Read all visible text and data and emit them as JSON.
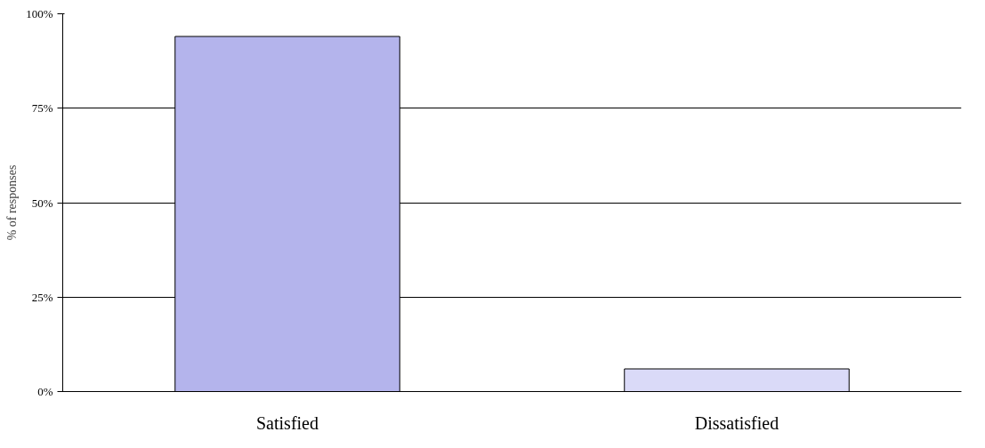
{
  "chart_data": {
    "type": "bar",
    "ylabel": "% of responses",
    "categories": [
      "Satisfied",
      "Dissatisfied"
    ],
    "values": [
      94,
      6
    ],
    "colors": [
      "#b4b4ec",
      "#dadaf8"
    ],
    "ylim": [
      0,
      100
    ],
    "yticks": [
      {
        "value": 0,
        "label": "0%"
      },
      {
        "value": 25,
        "label": "25%"
      },
      {
        "value": 50,
        "label": "50%"
      },
      {
        "value": 75,
        "label": "75%"
      },
      {
        "value": 100,
        "label": "100%"
      }
    ],
    "grid": "y"
  }
}
